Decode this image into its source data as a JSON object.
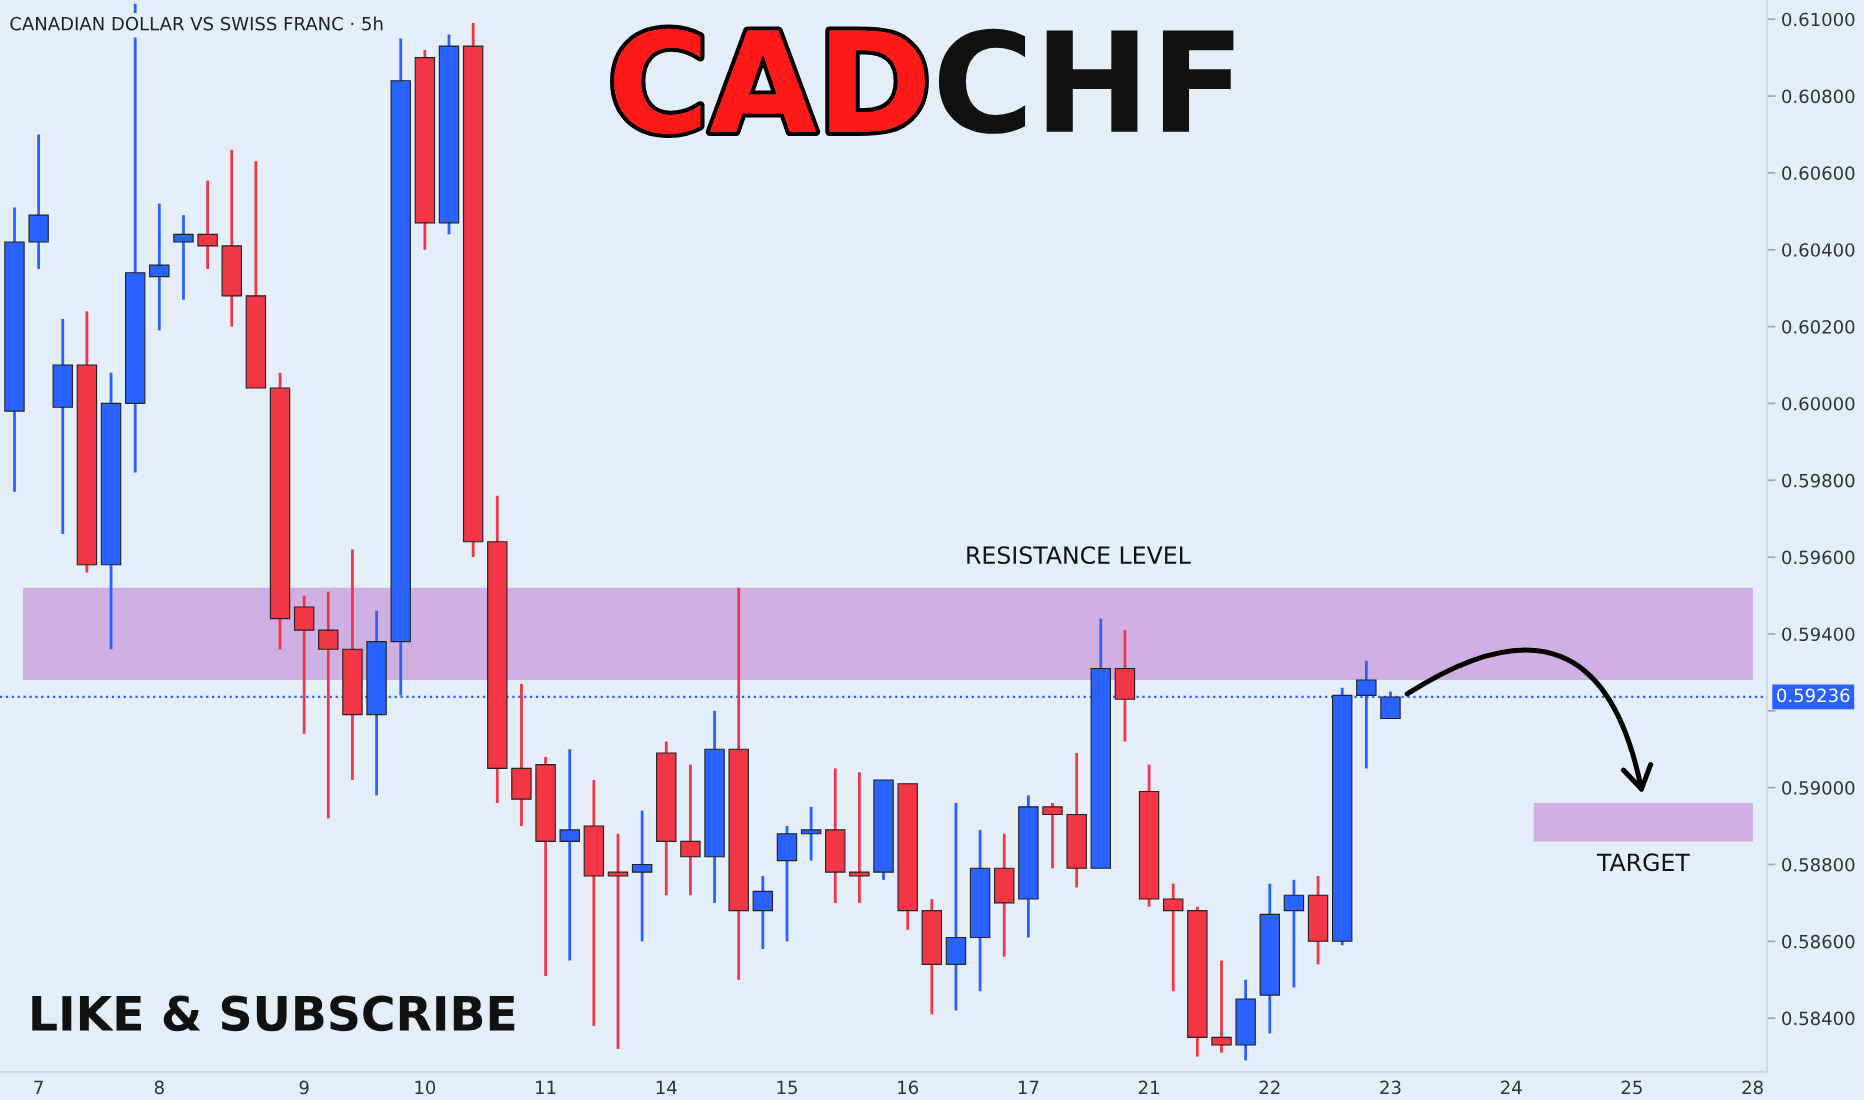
{
  "chart_data": {
    "type": "candlestick",
    "title": "CADCHF",
    "subtitle": "CANADIAN DOLLAR VS SWISS FRANC · 5h",
    "categories": [
      null,
      "7",
      null,
      null,
      null,
      null,
      "8",
      null,
      null,
      null,
      null,
      null,
      "9",
      null,
      null,
      null,
      null,
      "10",
      null,
      null,
      null,
      null,
      "11",
      null,
      null,
      null,
      null,
      "14",
      null,
      null,
      null,
      null,
      "15",
      null,
      null,
      null,
      null,
      "16",
      null,
      null,
      null,
      null,
      "17",
      null,
      null,
      null,
      null,
      "21",
      null,
      null,
      null,
      null,
      "22",
      null,
      null,
      null,
      null,
      "23",
      null,
      null,
      null,
      null,
      "24",
      null,
      null,
      null,
      null,
      "25",
      null,
      null,
      null,
      null,
      "28"
    ],
    "ohlc": [
      [
        0.5998,
        0.6051,
        0.5977,
        0.6042
      ],
      [
        0.6042,
        0.607,
        0.6035,
        0.6049
      ],
      [
        0.5999,
        0.6022,
        0.5966,
        0.601
      ],
      [
        0.601,
        0.6024,
        0.5956,
        0.5958
      ],
      [
        0.5958,
        0.6008,
        0.5936,
        0.6
      ],
      [
        0.6,
        0.6104,
        0.5982,
        0.6034
      ],
      [
        0.6033,
        0.6052,
        0.6019,
        0.6036
      ],
      [
        0.6042,
        0.6049,
        0.6027,
        0.6044
      ],
      [
        0.6044,
        0.6058,
        0.6035,
        0.6041
      ],
      [
        0.6041,
        0.6066,
        0.602,
        0.6028
      ],
      [
        0.6028,
        0.6063,
        0.6004,
        0.6004
      ],
      [
        0.6004,
        0.6008,
        0.5936,
        0.5944
      ],
      [
        0.5947,
        0.595,
        0.5914,
        0.5941
      ],
      [
        0.5941,
        0.5951,
        0.5892,
        0.5936
      ],
      [
        0.5936,
        0.5962,
        0.5902,
        0.5919
      ],
      [
        0.5919,
        0.5946,
        0.5898,
        0.5938
      ],
      [
        0.5938,
        0.6095,
        0.5924,
        0.6084
      ],
      [
        0.609,
        0.6092,
        0.604,
        0.6047
      ],
      [
        0.6047,
        0.6096,
        0.6044,
        0.6093
      ],
      [
        0.6093,
        0.6099,
        0.596,
        0.5964
      ],
      [
        0.5964,
        0.5976,
        0.5896,
        0.5905
      ],
      [
        0.5905,
        0.5927,
        0.589,
        0.5897
      ],
      [
        0.5906,
        0.5908,
        0.5851,
        0.5886
      ],
      [
        0.5886,
        0.591,
        0.5855,
        0.5889
      ],
      [
        0.589,
        0.5902,
        0.5838,
        0.5877
      ],
      [
        0.5878,
        0.5888,
        0.5832,
        0.5877
      ],
      [
        0.5878,
        0.5894,
        0.586,
        0.588
      ],
      [
        0.5909,
        0.5912,
        0.5872,
        0.5886
      ],
      [
        0.5886,
        0.5906,
        0.5872,
        0.5882
      ],
      [
        0.5882,
        0.592,
        0.587,
        0.591
      ],
      [
        0.591,
        0.5952,
        0.585,
        0.5868
      ],
      [
        0.5868,
        0.5877,
        0.5858,
        0.5873
      ],
      [
        0.5881,
        0.589,
        0.586,
        0.5888
      ],
      [
        0.5888,
        0.5895,
        0.5881,
        0.5889
      ],
      [
        0.5889,
        0.5905,
        0.587,
        0.5878
      ],
      [
        0.5878,
        0.5904,
        0.587,
        0.5877
      ],
      [
        0.5878,
        0.5902,
        0.5876,
        0.5902
      ],
      [
        0.5901,
        0.5901,
        0.5863,
        0.5868
      ],
      [
        0.5868,
        0.5871,
        0.5841,
        0.5854
      ],
      [
        0.5854,
        0.5896,
        0.5842,
        0.5861
      ],
      [
        0.5861,
        0.5889,
        0.5847,
        0.5879
      ],
      [
        0.5879,
        0.5888,
        0.5856,
        0.587
      ],
      [
        0.5871,
        0.5898,
        0.5861,
        0.5895
      ],
      [
        0.5895,
        0.5896,
        0.5879,
        0.5893
      ],
      [
        0.5893,
        0.5909,
        0.5874,
        0.5879
      ],
      [
        0.5879,
        0.5944,
        0.5879,
        0.5931
      ],
      [
        0.5931,
        0.5941,
        0.5912,
        0.5923
      ],
      [
        0.5899,
        0.5906,
        0.5869,
        0.5871
      ],
      [
        0.5871,
        0.5875,
        0.5847,
        0.5868
      ],
      [
        0.5868,
        0.5869,
        0.583,
        0.5835
      ],
      [
        0.5835,
        0.5855,
        0.5831,
        0.5833
      ],
      [
        0.5833,
        0.585,
        0.5829,
        0.5845
      ],
      [
        0.5846,
        0.5875,
        0.5836,
        0.5867
      ],
      [
        0.5868,
        0.5876,
        0.5848,
        0.5872
      ],
      [
        0.5872,
        0.5877,
        0.5854,
        0.586
      ],
      [
        0.586,
        0.5926,
        0.5859,
        0.5924
      ],
      [
        0.5924,
        0.5933,
        0.5905,
        0.5928
      ],
      [
        0.5918,
        0.5925,
        0.5918,
        0.59236
      ],
      null,
      null,
      null,
      null,
      null,
      null,
      null,
      null,
      null,
      null,
      null,
      null,
      null,
      null,
      null
    ],
    "colors": [
      "#2962ff",
      "#2962ff",
      "#2962ff",
      "#f23645",
      "#2962ff",
      "#2962ff",
      "#2962ff",
      "#2962ff",
      "#f23645",
      "#f23645",
      "#f23645",
      "#f23645",
      "#f23645",
      "#f23645",
      "#f23645",
      "#2962ff",
      "#2962ff",
      "#f23645",
      "#2962ff",
      "#f23645",
      "#f23645",
      "#f23645",
      "#f23645",
      "#2962ff",
      "#f23645",
      "#f23645",
      "#2962ff",
      "#f23645",
      "#f23645",
      "#2962ff",
      "#f23645",
      "#2962ff",
      "#2962ff",
      "#2962ff",
      "#f23645",
      "#f23645",
      "#2962ff",
      "#f23645",
      "#f23645",
      "#2962ff",
      "#2962ff",
      "#f23645",
      "#2962ff",
      "#f23645",
      "#f23645",
      "#2962ff",
      "#f23645",
      "#f23645",
      "#f23645",
      "#f23645",
      "#f23645",
      "#2962ff",
      "#2962ff",
      "#2962ff",
      "#f23645",
      "#2962ff",
      "#2962ff",
      "#2962ff",
      null,
      null,
      null,
      null,
      null,
      null,
      null,
      null,
      null,
      null,
      null,
      null,
      null,
      null,
      null
    ],
    "ylim": [
      0.5826,
      0.6105
    ],
    "yticks": [
      {
        "value": 0.584,
        "label": "0.58400"
      },
      {
        "value": 0.586,
        "label": "0.58600"
      },
      {
        "value": 0.588,
        "label": "0.58800"
      },
      {
        "value": 0.59,
        "label": "0.59000"
      },
      {
        "value": 0.592,
        "label": null
      },
      {
        "value": 0.594,
        "label": "0.59400"
      },
      {
        "value": 0.596,
        "label": "0.59600"
      },
      {
        "value": 0.598,
        "label": "0.59800"
      },
      {
        "value": 0.6,
        "label": "0.60000"
      },
      {
        "value": 0.602,
        "label": "0.60200"
      },
      {
        "value": 0.604,
        "label": "0.60400"
      },
      {
        "value": 0.606,
        "label": "0.60600"
      },
      {
        "value": 0.608,
        "label": "0.60800"
      },
      {
        "value": 0.61,
        "label": "0.61000"
      }
    ],
    "bands": [
      {
        "axis": "y",
        "from": 0.5928,
        "to": 0.5952,
        "label": "RESISTANCE LEVEL",
        "color": "#cda8e0"
      },
      {
        "axis": "y",
        "from": 0.5886,
        "to": 0.5896,
        "label": "TARGET",
        "color": "#cda8e0"
      }
    ],
    "ref_lines": [
      {
        "axis": "y",
        "value": 0.59236,
        "label": "0.59236",
        "color": "#2962ff",
        "line_style": "dotted"
      }
    ],
    "annotations": [
      "LIKE & SUBSCRIBE"
    ],
    "grid": false
  }
}
